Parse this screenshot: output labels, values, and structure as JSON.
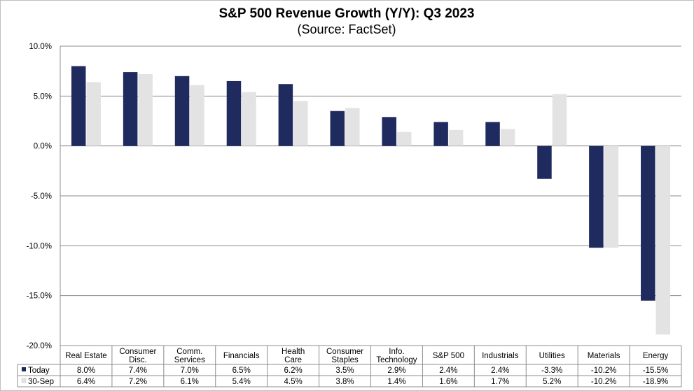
{
  "chart_data": {
    "type": "bar",
    "title": "S&P 500 Revenue Growth (Y/Y):  Q3 2023",
    "subtitle": "(Source: FactSet)",
    "categories": [
      [
        "Real Estate"
      ],
      [
        "Consumer",
        "Disc."
      ],
      [
        "Comm.",
        "Services"
      ],
      [
        "Financials"
      ],
      [
        "Health",
        "Care"
      ],
      [
        "Consumer",
        "Staples"
      ],
      [
        "Info.",
        "Technology"
      ],
      [
        "S&P 500"
      ],
      [
        "Industrials"
      ],
      [
        "Utilities"
      ],
      [
        "Materials"
      ],
      [
        "Energy"
      ]
    ],
    "series": [
      {
        "name": "Today",
        "color": "#1f2a5e",
        "values": [
          8.0,
          7.4,
          7.0,
          6.5,
          6.2,
          3.5,
          2.9,
          2.4,
          2.4,
          -3.3,
          -10.2,
          -15.5
        ],
        "labels": [
          "8.0%",
          "7.4%",
          "7.0%",
          "6.5%",
          "6.2%",
          "3.5%",
          "2.9%",
          "2.4%",
          "2.4%",
          "-3.3%",
          "-10.2%",
          "-15.5%"
        ]
      },
      {
        "name": "30-Sep",
        "color": "#e3e3e3",
        "values": [
          6.4,
          7.2,
          6.1,
          5.4,
          4.5,
          3.8,
          1.4,
          1.6,
          1.7,
          5.2,
          -10.2,
          -18.9
        ],
        "labels": [
          "6.4%",
          "7.2%",
          "6.1%",
          "5.4%",
          "4.5%",
          "3.8%",
          "1.4%",
          "1.6%",
          "1.7%",
          "5.2%",
          "-10.2%",
          "-18.9%"
        ]
      }
    ],
    "yticks": [
      10,
      5,
      0,
      -5,
      -10,
      -15,
      -20
    ],
    "ytick_labels": [
      "10.0%",
      "5.0%",
      "0.0%",
      "-5.0%",
      "-10.0%",
      "-15.0%",
      "-20.0%"
    ],
    "ylim": [
      -20,
      10
    ],
    "grid": true,
    "legend": "data-table"
  }
}
